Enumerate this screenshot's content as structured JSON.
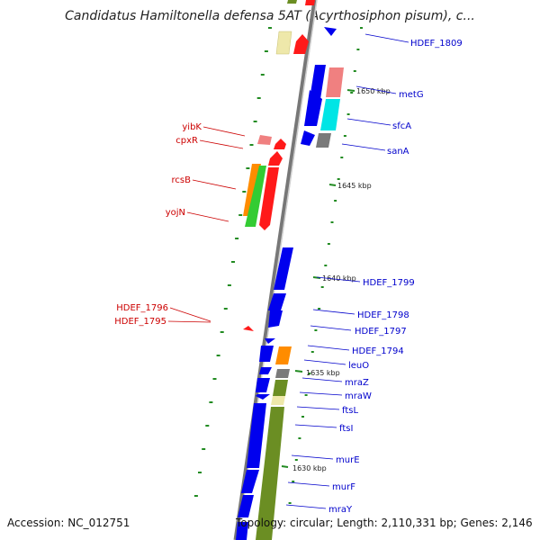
{
  "title": "Candidatus Hamiltonella defensa 5AT (Acyrthosiphon pisum), c...",
  "footer": {
    "accession": "Accession: NC_012751",
    "summary": "Topology: circular; Length: 2,110,331 bp; Genes: 2,146"
  },
  "colors": {
    "blue": "#0000ee",
    "red": "#ff1a1a",
    "pink": "#f08080",
    "cyan": "#00e5e5",
    "gray": "#7a7a7a",
    "olive": "#6b8e23",
    "khaki": "#eee8aa",
    "orange": "#ff8c00",
    "green": "#33cc33",
    "dots": "#228b22",
    "label_right": "#0000cc",
    "label_left": "#cc0000"
  },
  "kbp_ticks": [
    "1650 kbp",
    "1645 kbp",
    "1640 kbp",
    "1635 kbp",
    "1630 kbp"
  ],
  "right_labels": [
    "HDEF_1809",
    "metG",
    "sfcA",
    "sanA",
    "HDEF_1799",
    "HDEF_1798",
    "HDEF_1797",
    "HDEF_1794",
    "leuO",
    "mraZ",
    "mraW",
    "ftsL",
    "ftsI",
    "murE",
    "murF",
    "mraY"
  ],
  "left_labels": [
    "yibK",
    "cpxR",
    "rcsB",
    "yojN",
    "HDEF_1796",
    "HDEF_1795"
  ]
}
